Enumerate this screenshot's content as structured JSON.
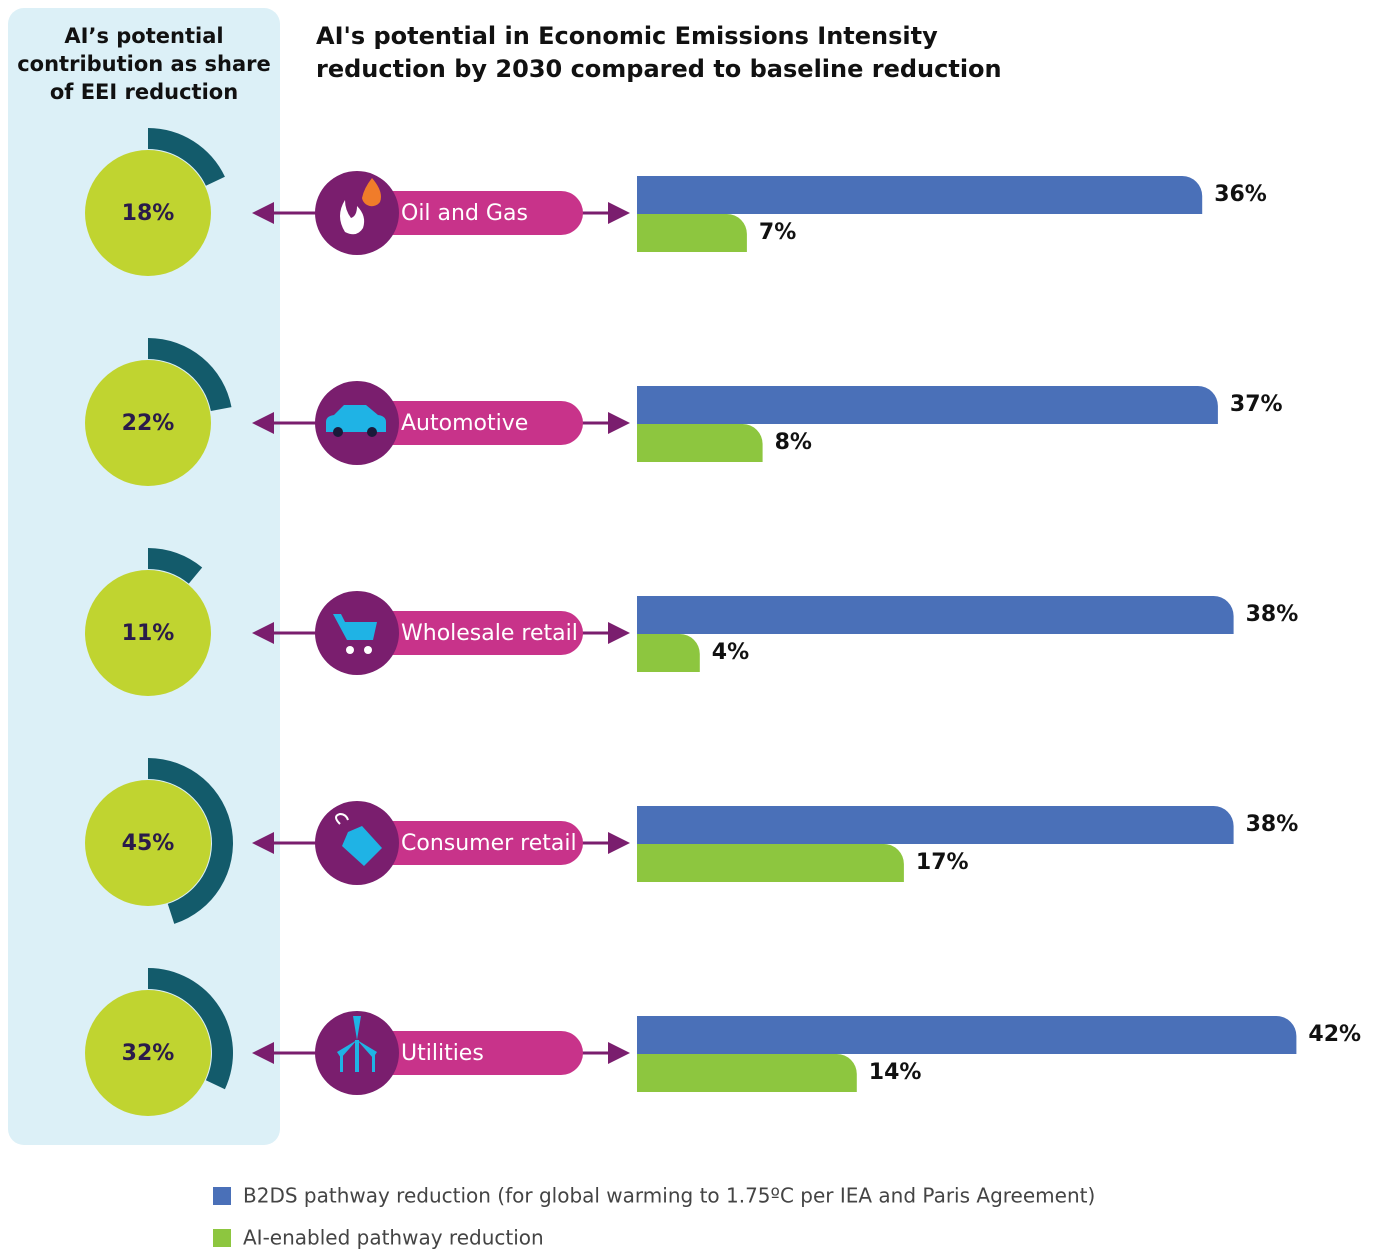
{
  "chart_data": [
    {
      "type": "donut",
      "title": "AI’s potential contribution as share of EEI reduction",
      "values": [
        18,
        22,
        11,
        45,
        32
      ],
      "value_labels": [
        "18%",
        "22%",
        "11%",
        "45%",
        "32%"
      ],
      "color": "#c0d430",
      "arc_color": "#135b6b"
    },
    {
      "type": "bar",
      "title": "AI's potential in Economic Emissions Intensity reduction by 2030 compared to baseline reduction",
      "categories": [
        "Oil and Gas",
        "Automotive",
        "Wholesale retail",
        "Consumer retail",
        "Utilities"
      ],
      "series": [
        {
          "name": "B2DS pathway reduction (for global warming to 1.75ºC per IEA and Paris Agreement)",
          "color": "#4a70b8",
          "values": [
            36,
            37,
            38,
            38,
            42
          ],
          "value_labels": [
            "36%",
            "37%",
            "38%",
            "38%",
            "42%"
          ]
        },
        {
          "name": "AI-enabled pathway reduction",
          "color": "#8dc63f",
          "values": [
            7,
            8,
            4,
            17,
            14
          ],
          "value_labels": [
            "7%",
            "8%",
            "4%",
            "17%",
            "14%"
          ]
        }
      ]
    }
  ]
}
